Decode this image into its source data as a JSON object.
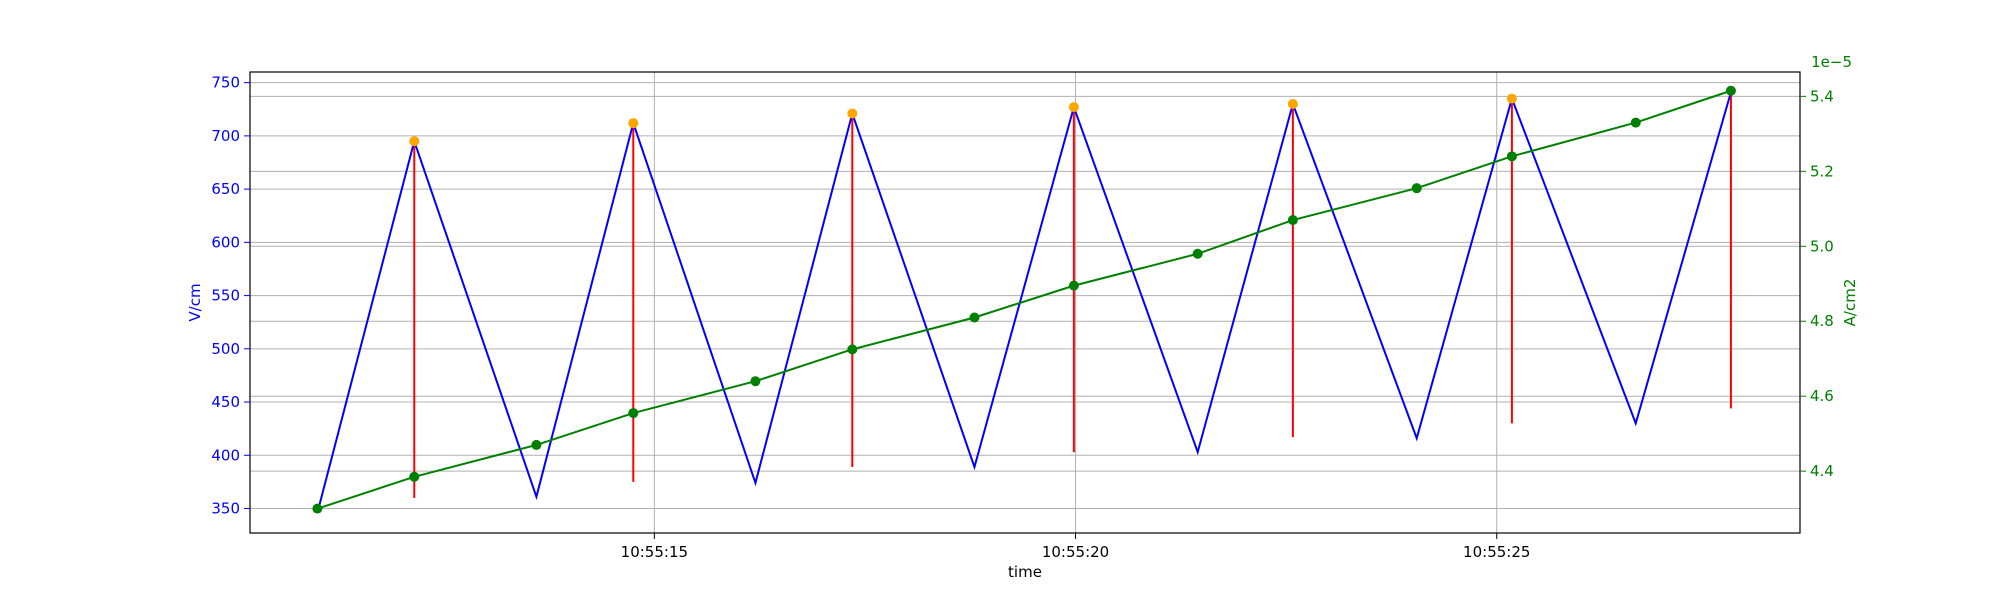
{
  "chart_data": {
    "type": "line",
    "xlabel": "time",
    "ylabel_left": "V/cm",
    "ylabel_right": "A/cm2",
    "right_axis_offset_label": "1e−5",
    "x_ticks": [
      {
        "seconds": 15,
        "label": "10:55:15"
      },
      {
        "seconds": 20,
        "label": "10:55:20"
      },
      {
        "seconds": 25,
        "label": "10:55:25"
      }
    ],
    "xlim": [
      10.2,
      28.6
    ],
    "ylim_left": [
      327,
      760
    ],
    "ylim_right": [
      4.235,
      5.465
    ],
    "yticks_left": [
      350,
      400,
      450,
      500,
      550,
      600,
      650,
      700,
      750
    ],
    "yticks_right": [
      4.4,
      4.6,
      4.8,
      5.0,
      5.2,
      5.4
    ],
    "yticks_right_labels": [
      "4.4",
      "4.6",
      "4.8",
      "5.0",
      "5.2",
      "5.4"
    ],
    "grid": true,
    "colors": {
      "voltage": "#0000ff",
      "current": "#008000",
      "peaks": "#ffa500",
      "errorbars": "#ff0000",
      "axis_left": "#0000ff",
      "axis_right": "#008000",
      "grid": "#b0b0b0"
    },
    "series": [
      {
        "axis": "left",
        "style": "line",
        "x": [
          11.0,
          12.15,
          13.6,
          14.75,
          16.2,
          17.35,
          18.8,
          19.98,
          21.45,
          22.58,
          24.05,
          25.18,
          26.65,
          27.78
        ],
        "y": [
          346,
          695,
          361,
          712,
          374,
          721,
          389,
          727,
          403,
          730,
          416,
          735,
          430,
          741
        ]
      },
      {
        "axis": "left",
        "style": "markers",
        "x": [
          12.15,
          14.75,
          17.35,
          19.98,
          22.58,
          25.18
        ],
        "y": [
          695,
          712,
          721,
          727,
          730,
          735
        ]
      },
      {
        "axis": "left",
        "style": "errorbars",
        "x": [
          12.15,
          14.75,
          17.35,
          19.98,
          22.58,
          25.18,
          27.78
        ],
        "y_low": [
          360,
          375,
          389,
          403,
          417,
          430,
          444
        ],
        "y_high": [
          695,
          712,
          721,
          727,
          730,
          735,
          741
        ]
      },
      {
        "axis": "right",
        "style": "line+markers",
        "x": [
          11.0,
          12.15,
          13.6,
          14.75,
          16.2,
          17.35,
          18.8,
          19.98,
          21.45,
          22.58,
          24.05,
          25.18,
          26.65,
          27.78
        ],
        "y": [
          4.3,
          4.385,
          4.47,
          4.555,
          4.64,
          4.725,
          4.81,
          4.895,
          4.98,
          5.07,
          5.155,
          5.24,
          5.33,
          5.415
        ]
      }
    ]
  }
}
